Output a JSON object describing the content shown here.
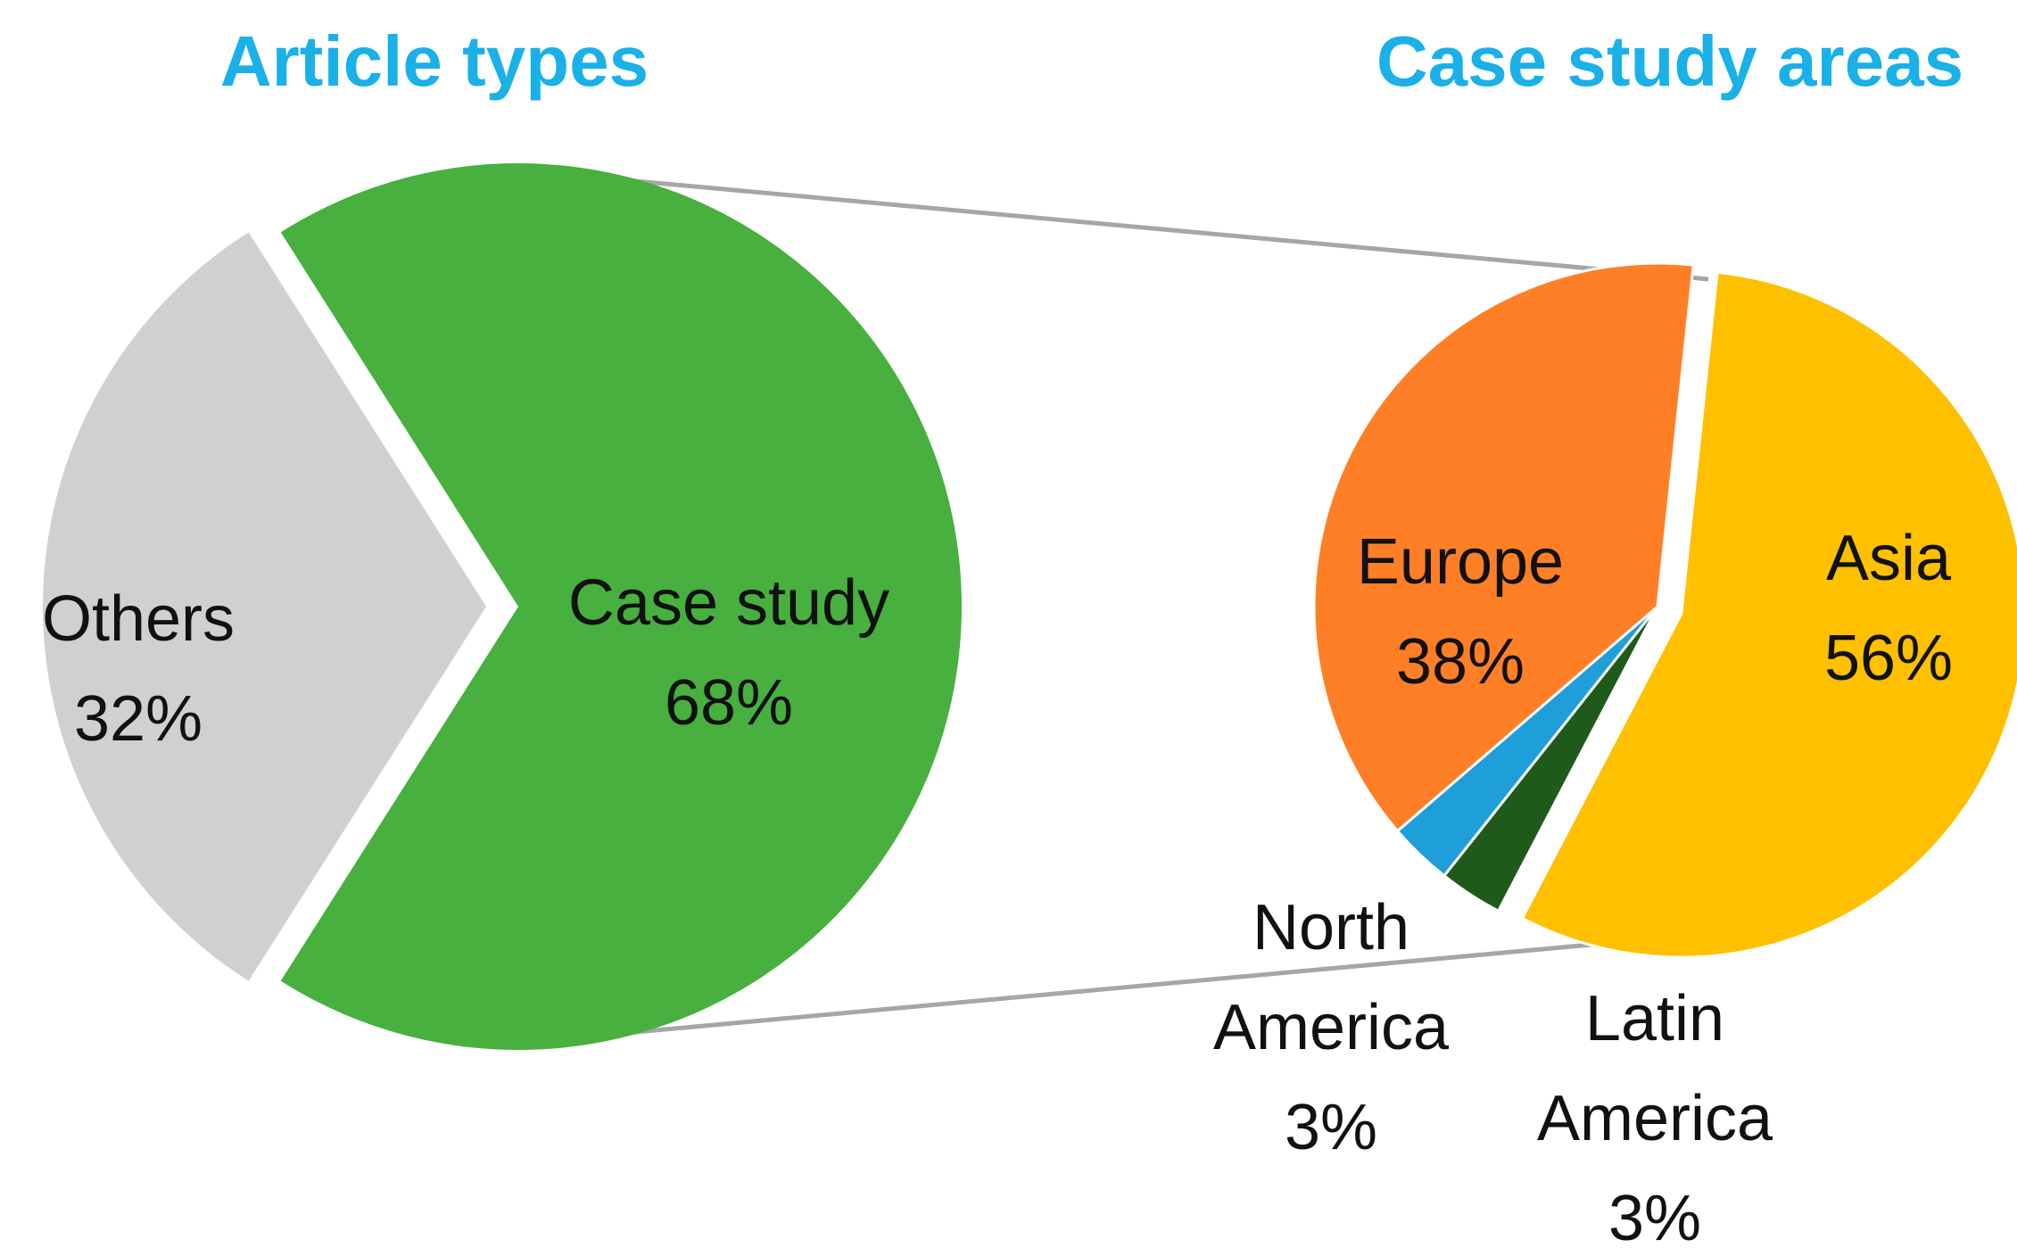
{
  "colors": {
    "title": "#1AB0E8",
    "connector": "#A6A6A6",
    "label": "#111111"
  },
  "chart_data": [
    {
      "type": "pie",
      "title": "Article types",
      "slices": [
        {
          "name": "Case study",
          "value": 68,
          "value_label": "68%",
          "color": "#47B03F",
          "exploded": true
        },
        {
          "name": "Others",
          "value": 32,
          "value_label": "32%",
          "color": "#D2D0CE",
          "exploded": false
        }
      ]
    },
    {
      "type": "pie",
      "title": "Case study areas",
      "slices": [
        {
          "name": "Asia",
          "value": 56,
          "value_label": "56%",
          "color": "#FFC000",
          "exploded": true
        },
        {
          "name": "Latin America",
          "value": 3,
          "value_label": "3%",
          "color": "#1F5A1A",
          "exploded": false
        },
        {
          "name": "North America",
          "value": 3,
          "value_label": "3%",
          "color": "#1E9FDA",
          "exploded": false
        },
        {
          "name": "Europe",
          "value": 38,
          "value_label": "38%",
          "color": "#FF7F27",
          "exploded": false
        }
      ]
    }
  ]
}
